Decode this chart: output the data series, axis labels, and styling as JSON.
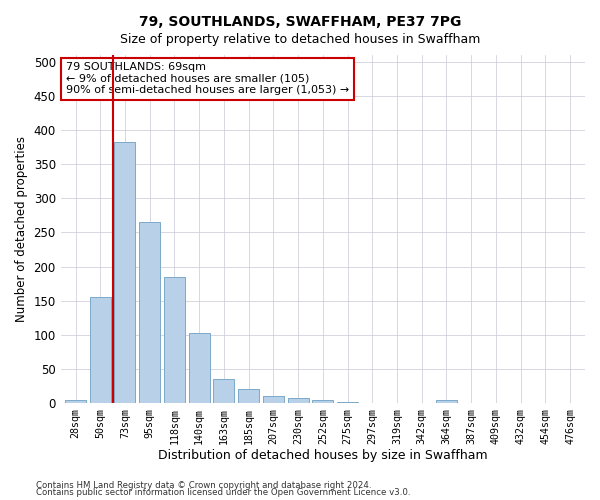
{
  "title": "79, SOUTHLANDS, SWAFFHAM, PE37 7PG",
  "subtitle": "Size of property relative to detached houses in Swaffham",
  "xlabel": "Distribution of detached houses by size in Swaffham",
  "ylabel": "Number of detached properties",
  "categories": [
    "28sqm",
    "50sqm",
    "73sqm",
    "95sqm",
    "118sqm",
    "140sqm",
    "163sqm",
    "185sqm",
    "207sqm",
    "230sqm",
    "252sqm",
    "275sqm",
    "297sqm",
    "319sqm",
    "342sqm",
    "364sqm",
    "387sqm",
    "409sqm",
    "432sqm",
    "454sqm",
    "476sqm"
  ],
  "values": [
    5,
    155,
    383,
    265,
    185,
    103,
    35,
    20,
    10,
    8,
    5,
    2,
    0,
    0,
    0,
    5,
    0,
    0,
    0,
    0,
    0
  ],
  "bar_color": "#b8d0e8",
  "bar_edge_color": "#7aaac8",
  "red_line_x": 1.5,
  "red_line_color": "#cc0000",
  "annotation_text": "79 SOUTHLANDS: 69sqm\n← 9% of detached houses are smaller (105)\n90% of semi-detached houses are larger (1,053) →",
  "annotation_box_color": "#ffffff",
  "annotation_box_edge_color": "#cc0000",
  "ylim": [
    0,
    510
  ],
  "yticks": [
    0,
    50,
    100,
    150,
    200,
    250,
    300,
    350,
    400,
    450,
    500
  ],
  "footnote1": "Contains HM Land Registry data © Crown copyright and database right 2024.",
  "footnote2": "Contains public sector information licensed under the Open Government Licence v3.0.",
  "bg_color": "#ffffff",
  "grid_color": "#c8c8d8",
  "title_fontsize": 10,
  "subtitle_fontsize": 9
}
